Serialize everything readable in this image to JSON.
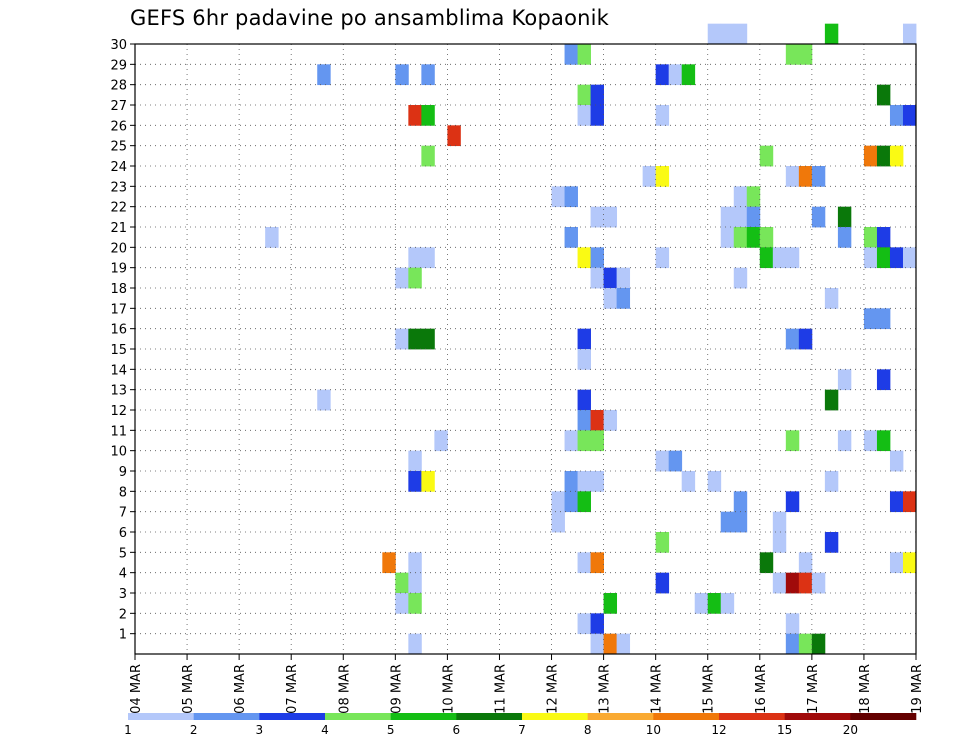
{
  "chart_data": {
    "type": "heatmap",
    "title": "GEFS 6hr padavine po ansamblima Kopaonik",
    "xlabel": "",
    "ylabel": "",
    "x_ticks": [
      "04 MAR",
      "05 MAR",
      "06 MAR",
      "07 MAR",
      "08 MAR",
      "09 MAR",
      "10 MAR",
      "11 MAR",
      "12 MAR",
      "13 MAR",
      "14 MAR",
      "15 MAR",
      "16 MAR",
      "17 MAR",
      "18 MAR",
      "19 MAR"
    ],
    "y_ticks": [
      1,
      2,
      3,
      4,
      5,
      6,
      7,
      8,
      9,
      10,
      11,
      12,
      13,
      14,
      15,
      16,
      17,
      18,
      19,
      20,
      21,
      22,
      23,
      24,
      25,
      26,
      27,
      28,
      29,
      30
    ],
    "x_range_days": [
      0,
      15
    ],
    "y_range": [
      0,
      30
    ],
    "time_step_hours": 6,
    "grid": true,
    "colorbar": {
      "position": "bottom",
      "labels": [
        "1",
        "2",
        "3",
        "4",
        "5",
        "6",
        "7",
        "8",
        "10",
        "12",
        "15",
        "20"
      ],
      "colors": [
        "#b4c8fa",
        "#6496f0",
        "#1e3ce6",
        "#78e65a",
        "#14be14",
        "#0a780a",
        "#fafa14",
        "#faaa32",
        "#f0780a",
        "#dc3214",
        "#a00a0a",
        "#640000"
      ]
    },
    "cells": [
      [
        30,
        44,
        0
      ],
      [
        30,
        45,
        0
      ],
      [
        30,
        46,
        0
      ],
      [
        30,
        53,
        4
      ],
      [
        30,
        59,
        0
      ],
      [
        29,
        33,
        1
      ],
      [
        29,
        34,
        3
      ],
      [
        29,
        50,
        3
      ],
      [
        29,
        51,
        3
      ],
      [
        28,
        14,
        1
      ],
      [
        28,
        20,
        1
      ],
      [
        28,
        22,
        1
      ],
      [
        28,
        40,
        2
      ],
      [
        28,
        41,
        0
      ],
      [
        28,
        42,
        4
      ],
      [
        27,
        34,
        3
      ],
      [
        27,
        35,
        2
      ],
      [
        27,
        57,
        5
      ],
      [
        26,
        21,
        9
      ],
      [
        26,
        22,
        4
      ],
      [
        26,
        34,
        0
      ],
      [
        26,
        35,
        2
      ],
      [
        26,
        40,
        0
      ],
      [
        26,
        58,
        1
      ],
      [
        26,
        59,
        2
      ],
      [
        25,
        24,
        9
      ],
      [
        24,
        22,
        3
      ],
      [
        24,
        48,
        3
      ],
      [
        24,
        56,
        8
      ],
      [
        24,
        57,
        5
      ],
      [
        24,
        58,
        6
      ],
      [
        23,
        39,
        0
      ],
      [
        23,
        40,
        6
      ],
      [
        23,
        50,
        0
      ],
      [
        23,
        51,
        8
      ],
      [
        23,
        52,
        1
      ],
      [
        22,
        32,
        0
      ],
      [
        22,
        33,
        1
      ],
      [
        22,
        46,
        0
      ],
      [
        22,
        47,
        3
      ],
      [
        21,
        35,
        0
      ],
      [
        21,
        36,
        0
      ],
      [
        21,
        45,
        0
      ],
      [
        21,
        46,
        0
      ],
      [
        21,
        47,
        1
      ],
      [
        21,
        52,
        1
      ],
      [
        21,
        54,
        5
      ],
      [
        20,
        10,
        0
      ],
      [
        20,
        33,
        1
      ],
      [
        20,
        45,
        0
      ],
      [
        20,
        46,
        3
      ],
      [
        20,
        47,
        4
      ],
      [
        20,
        48,
        3
      ],
      [
        20,
        54,
        1
      ],
      [
        20,
        56,
        3
      ],
      [
        20,
        57,
        2
      ],
      [
        19,
        21,
        0
      ],
      [
        19,
        22,
        0
      ],
      [
        19,
        34,
        6
      ],
      [
        19,
        35,
        1
      ],
      [
        19,
        40,
        0
      ],
      [
        19,
        48,
        4
      ],
      [
        19,
        49,
        0
      ],
      [
        19,
        50,
        0
      ],
      [
        19,
        56,
        0
      ],
      [
        19,
        57,
        4
      ],
      [
        19,
        58,
        2
      ],
      [
        19,
        59,
        0
      ],
      [
        18,
        20,
        0
      ],
      [
        18,
        21,
        3
      ],
      [
        18,
        35,
        0
      ],
      [
        18,
        36,
        2
      ],
      [
        18,
        37,
        0
      ],
      [
        18,
        46,
        0
      ],
      [
        17,
        36,
        0
      ],
      [
        17,
        37,
        1
      ],
      [
        17,
        53,
        0
      ],
      [
        16,
        56,
        1
      ],
      [
        16,
        57,
        1
      ],
      [
        15,
        20,
        0
      ],
      [
        15,
        21,
        5
      ],
      [
        15,
        22,
        5
      ],
      [
        15,
        34,
        2
      ],
      [
        15,
        50,
        1
      ],
      [
        15,
        51,
        2
      ],
      [
        14,
        34,
        0
      ],
      [
        13,
        54,
        0
      ],
      [
        13,
        57,
        2
      ],
      [
        12,
        14,
        0
      ],
      [
        12,
        34,
        2
      ],
      [
        12,
        53,
        5
      ],
      [
        11,
        34,
        1
      ],
      [
        11,
        35,
        9
      ],
      [
        11,
        36,
        0
      ],
      [
        10,
        23,
        0
      ],
      [
        10,
        33,
        0
      ],
      [
        10,
        34,
        3
      ],
      [
        10,
        35,
        3
      ],
      [
        10,
        50,
        3
      ],
      [
        10,
        54,
        0
      ],
      [
        10,
        56,
        0
      ],
      [
        10,
        57,
        4
      ],
      [
        9,
        21,
        0
      ],
      [
        9,
        40,
        0
      ],
      [
        9,
        41,
        1
      ],
      [
        9,
        58,
        0
      ],
      [
        8,
        21,
        2
      ],
      [
        8,
        22,
        6
      ],
      [
        8,
        33,
        1
      ],
      [
        8,
        34,
        0
      ],
      [
        8,
        35,
        0
      ],
      [
        8,
        42,
        0
      ],
      [
        8,
        44,
        0
      ],
      [
        8,
        53,
        0
      ],
      [
        7,
        32,
        0
      ],
      [
        7,
        33,
        1
      ],
      [
        7,
        34,
        4
      ],
      [
        7,
        46,
        1
      ],
      [
        7,
        50,
        2
      ],
      [
        7,
        58,
        2
      ],
      [
        7,
        59,
        9
      ],
      [
        6,
        32,
        0
      ],
      [
        6,
        45,
        1
      ],
      [
        6,
        46,
        1
      ],
      [
        6,
        49,
        0
      ],
      [
        5,
        40,
        3
      ],
      [
        5,
        49,
        0
      ],
      [
        5,
        53,
        2
      ],
      [
        4,
        19,
        8
      ],
      [
        4,
        21,
        0
      ],
      [
        4,
        34,
        0
      ],
      [
        4,
        35,
        8
      ],
      [
        4,
        48,
        5
      ],
      [
        4,
        51,
        0
      ],
      [
        4,
        58,
        0
      ],
      [
        4,
        59,
        6
      ],
      [
        3,
        20,
        3
      ],
      [
        3,
        21,
        0
      ],
      [
        3,
        40,
        2
      ],
      [
        3,
        49,
        0
      ],
      [
        3,
        50,
        10
      ],
      [
        3,
        51,
        9
      ],
      [
        3,
        52,
        0
      ],
      [
        2,
        20,
        0
      ],
      [
        2,
        21,
        3
      ],
      [
        2,
        36,
        4
      ],
      [
        2,
        43,
        0
      ],
      [
        2,
        44,
        4
      ],
      [
        2,
        45,
        0
      ],
      [
        1,
        34,
        0
      ],
      [
        1,
        35,
        2
      ],
      [
        1,
        50,
        0
      ],
      [
        0,
        21,
        0
      ],
      [
        0,
        35,
        0
      ],
      [
        0,
        36,
        8
      ],
      [
        0,
        37,
        0
      ],
      [
        0,
        50,
        1
      ],
      [
        0,
        51,
        3
      ],
      [
        0,
        52,
        5
      ]
    ]
  }
}
